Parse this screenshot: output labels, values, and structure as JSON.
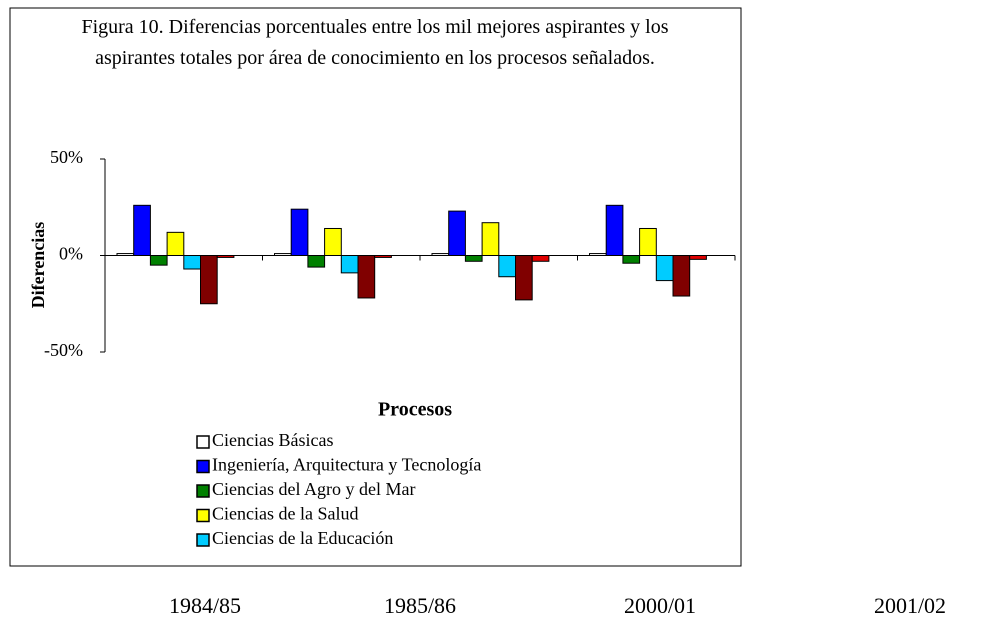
{
  "chart_data": {
    "type": "bar",
    "title": "Figura 10. Diferencias porcentuales entre los mil mejores aspirantes y los aspirantes totales por área de conocimiento en los procesos señalados.",
    "xlabel": "Procesos",
    "ylabel": "Diferencias",
    "categories": [
      "1984/85",
      "1985/86",
      "2000/01",
      "2001/02"
    ],
    "series": [
      {
        "name": "Ciencias Básicas",
        "color": "#ffffff",
        "values": [
          1,
          1,
          1,
          1
        ]
      },
      {
        "name": "Ingeniería, Arquitectura y Tecnología",
        "color": "#0000ff",
        "values": [
          26,
          24,
          23,
          26
        ]
      },
      {
        "name": "Ciencias del Agro y del Mar",
        "color": "#008000",
        "values": [
          -5,
          -6,
          -3,
          -4
        ]
      },
      {
        "name": "Ciencias de la Salud",
        "color": "#ffff00",
        "values": [
          12,
          14,
          17,
          14
        ]
      },
      {
        "name": "Ciencias de la Educación",
        "color": "#00ccff",
        "values": [
          -7,
          -9,
          -11,
          -13
        ]
      },
      {
        "color": "#800000",
        "values": [
          -25,
          -22,
          -23,
          -21
        ]
      },
      {
        "color": "#e00000",
        "values": [
          -1,
          -1,
          -3,
          -2
        ]
      }
    ],
    "ylim": [
      -50,
      50
    ],
    "yticks": [
      {
        "value": 50,
        "label": "50%"
      },
      {
        "value": 0,
        "label": "0%"
      },
      {
        "value": -50,
        "label": "-50%"
      }
    ]
  }
}
